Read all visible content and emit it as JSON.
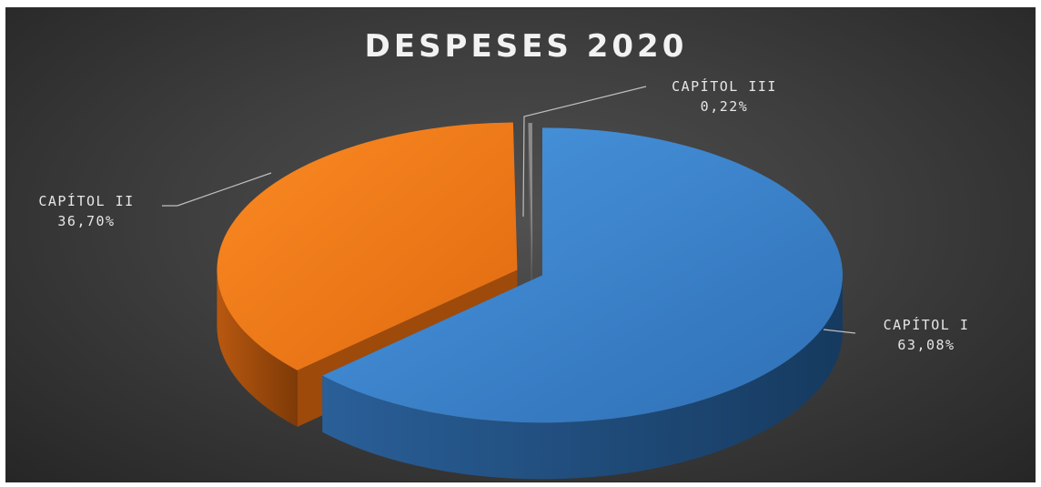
{
  "chart_data": {
    "type": "pie",
    "title": "DESPESES 2020",
    "slices": [
      {
        "name": "CAPÍTOL I",
        "value_label": "63,08%",
        "value": 63.08,
        "color": "#3a83cf",
        "side_color": "#1f4f80",
        "exploded": true
      },
      {
        "name": "CAPÍTOL II",
        "value_label": "36,70%",
        "value": 36.7,
        "color": "#f07a1a",
        "side_color": "#9e4a0b",
        "exploded": true
      },
      {
        "name": "CAPÍTOL III",
        "value_label": "0,22%",
        "value": 0.22,
        "color": "#8a8a8a",
        "side_color": "#5a5a5a",
        "exploded": true
      }
    ],
    "three_d": true,
    "legend": "none",
    "background": "#3f3f3f"
  }
}
